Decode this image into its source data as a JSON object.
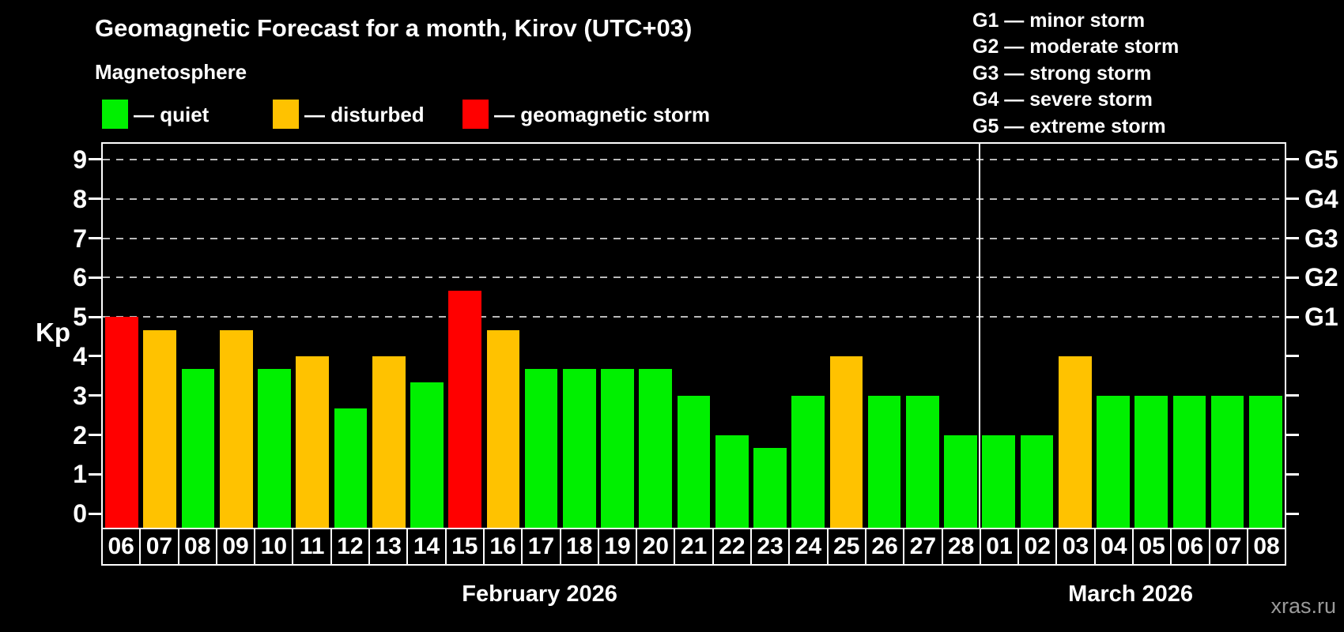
{
  "header": {
    "title": "Geomagnetic Forecast for a month, Kirov (UTC+03)",
    "subtitle": "Magnetosphere"
  },
  "legend": {
    "items": [
      {
        "label": "— quiet",
        "status": "quiet",
        "color": "#00f000"
      },
      {
        "label": "— disturbed",
        "status": "disturbed",
        "color": "#ffc200"
      },
      {
        "label": "— geomagnetic storm",
        "status": "storm",
        "color": "#ff0000"
      }
    ]
  },
  "g_legend": {
    "items": [
      "G1 — minor storm",
      "G2 — moderate storm",
      "G3 — strong storm",
      "G4 — severe storm",
      "G5 — extreme storm"
    ]
  },
  "axes": {
    "ylabel": "Kp",
    "left_ticks": [
      0,
      1,
      2,
      3,
      4,
      5,
      6,
      7,
      8,
      9
    ],
    "right_labels": [
      {
        "kp": 5,
        "label": "G1"
      },
      {
        "kp": 6,
        "label": "G2"
      },
      {
        "kp": 7,
        "label": "G3"
      },
      {
        "kp": 8,
        "label": "G4"
      },
      {
        "kp": 9,
        "label": "G5"
      }
    ],
    "gridlines_kp": [
      5,
      6,
      7,
      8,
      9
    ]
  },
  "chart_data": {
    "type": "bar",
    "title": "Geomagnetic Forecast for a month, Kirov (UTC+03)",
    "subtitle": "Magnetosphere",
    "ylabel": "Kp",
    "ylim": [
      0,
      9
    ],
    "yticks": [
      0,
      1,
      2,
      3,
      4,
      5,
      6,
      7,
      8,
      9
    ],
    "gridlines_kp": [
      5,
      6,
      7,
      8,
      9
    ],
    "right_axis": [
      {
        "kp": 5,
        "label": "G1"
      },
      {
        "kp": 6,
        "label": "G2"
      },
      {
        "kp": 7,
        "label": "G3"
      },
      {
        "kp": 8,
        "label": "G4"
      },
      {
        "kp": 9,
        "label": "G5"
      }
    ],
    "legend_entries": [
      "— quiet",
      "— disturbed",
      "— geomagnetic storm"
    ],
    "categories": [
      "06",
      "07",
      "08",
      "09",
      "10",
      "11",
      "12",
      "13",
      "14",
      "15",
      "16",
      "17",
      "18",
      "19",
      "20",
      "21",
      "22",
      "23",
      "24",
      "25",
      "26",
      "27",
      "28",
      "01",
      "02",
      "03",
      "04",
      "05",
      "06",
      "07",
      "08"
    ],
    "values": [
      5,
      4.67,
      3.67,
      4.67,
      3.67,
      4,
      2.67,
      4,
      3.33,
      5.67,
      4.67,
      3.67,
      3.67,
      3.67,
      3.67,
      3,
      2,
      1.67,
      3,
      4,
      3,
      3,
      2,
      2,
      2,
      4,
      3,
      3,
      3,
      3,
      3
    ],
    "statuses": [
      "storm",
      "disturbed",
      "quiet",
      "disturbed",
      "quiet",
      "disturbed",
      "quiet",
      "disturbed",
      "quiet",
      "storm",
      "disturbed",
      "quiet",
      "quiet",
      "quiet",
      "quiet",
      "quiet",
      "quiet",
      "quiet",
      "quiet",
      "disturbed",
      "quiet",
      "quiet",
      "quiet",
      "quiet",
      "quiet",
      "disturbed",
      "quiet",
      "quiet",
      "quiet",
      "quiet",
      "quiet"
    ],
    "status_colors": {
      "quiet": "#00f000",
      "disturbed": "#ffc200",
      "storm": "#ff0000"
    },
    "x_groups": [
      {
        "label": "February 2026",
        "count": 23
      },
      {
        "label": "March 2026",
        "count": 8
      }
    ]
  },
  "footer": {
    "watermark": "xras.ru"
  }
}
